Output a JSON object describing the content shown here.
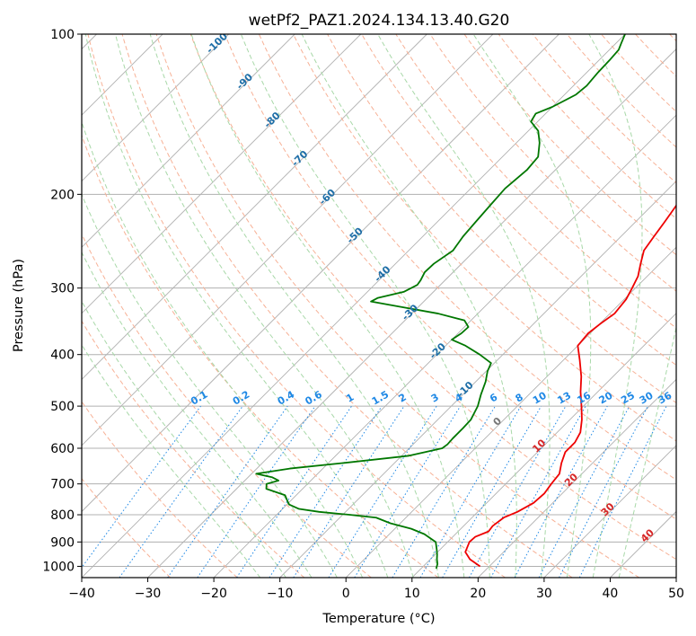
{
  "chart_data": {
    "type": "line",
    "subtype": "skew-T log-P sounding diagram",
    "title": "wetPf2_PAZ1.2024.134.13.40.G20",
    "xlabel": "Temperature (°C)",
    "ylabel": "Pressure (hPa)",
    "xlim": [
      -40,
      50
    ],
    "ylim": [
      1050,
      100
    ],
    "y_scale": "log",
    "grid": true,
    "x_ticks": [
      "−40",
      "−30",
      "−20",
      "−10",
      "0",
      "10",
      "20",
      "30",
      "40",
      "50"
    ],
    "y_ticks": [
      "100",
      "200",
      "300",
      "400",
      "500",
      "600",
      "700",
      "800",
      "900",
      "1000"
    ],
    "isotherm_labels": [
      "-100",
      "-90",
      "-80",
      "-70",
      "-60",
      "-50",
      "-40",
      "-30",
      "-20",
      "-10",
      "0",
      "10",
      "20",
      "30",
      "40"
    ],
    "isotherm_label_values": [
      -100,
      -90,
      -80,
      -70,
      -60,
      -50,
      -40,
      -30,
      -20,
      -10,
      0,
      10,
      20,
      30,
      40
    ],
    "mixing_ratio_labels": [
      "0.1",
      "0.2",
      "0.4",
      "0.6",
      "1",
      "1.5",
      "2",
      "3",
      "4",
      "6",
      "8",
      "10",
      "13",
      "16",
      "20",
      "25",
      "30",
      "36"
    ],
    "series": [
      {
        "color": "#ee0000",
        "points": [
          [
            1000,
            18.6
          ],
          [
            970,
            16.0
          ],
          [
            940,
            14.2
          ],
          [
            900,
            13.3
          ],
          [
            880,
            13.4
          ],
          [
            860,
            14.6
          ],
          [
            840,
            14.4
          ],
          [
            810,
            14.8
          ],
          [
            790,
            16.0
          ],
          [
            760,
            17.1
          ],
          [
            730,
            17.3
          ],
          [
            700,
            16.9
          ],
          [
            670,
            16.6
          ],
          [
            640,
            15.3
          ],
          [
            610,
            14.2
          ],
          [
            585,
            14.2
          ],
          [
            560,
            13.5
          ],
          [
            530,
            11.8
          ],
          [
            500,
            9.7
          ],
          [
            470,
            7.4
          ],
          [
            440,
            5.2
          ],
          [
            410,
            2.5
          ],
          [
            385,
            0.0
          ],
          [
            365,
            -0.3
          ],
          [
            350,
            0.1
          ],
          [
            335,
            0.7
          ],
          [
            315,
            0.3
          ],
          [
            300,
            -0.5
          ],
          [
            285,
            -1.4
          ],
          [
            270,
            -2.9
          ],
          [
            255,
            -4.4
          ],
          [
            240,
            -5.0
          ],
          [
            225,
            -5.6
          ],
          [
            210,
            -6.3
          ],
          [
            195,
            -7.7
          ],
          [
            180,
            -9.7
          ],
          [
            165,
            -11.6
          ],
          [
            152,
            -13.4
          ],
          [
            142,
            -14.9
          ],
          [
            135,
            -16.3
          ],
          [
            128,
            -18.1
          ],
          [
            122,
            -19.6
          ],
          [
            117,
            -20.5
          ],
          [
            110,
            -21.5
          ],
          [
            104,
            -22.5
          ],
          [
            100,
            -23.1
          ]
        ]
      },
      {
        "color": "#007700",
        "points": [
          [
            1010,
            12.3
          ],
          [
            990,
            11.8
          ],
          [
            970,
            11.0
          ],
          [
            950,
            10.3
          ],
          [
            930,
            9.5
          ],
          [
            900,
            8.2
          ],
          [
            870,
            5.3
          ],
          [
            850,
            2.5
          ],
          [
            830,
            -1.5
          ],
          [
            810,
            -4.5
          ],
          [
            800,
            -9.0
          ],
          [
            790,
            -14.0
          ],
          [
            780,
            -17.5
          ],
          [
            765,
            -19.7
          ],
          [
            750,
            -20.7
          ],
          [
            735,
            -21.7
          ],
          [
            715,
            -25.5
          ],
          [
            700,
            -26.2
          ],
          [
            690,
            -24.9
          ],
          [
            680,
            -26.4
          ],
          [
            670,
            -29.3
          ],
          [
            655,
            -25.0
          ],
          [
            640,
            -18.0
          ],
          [
            620,
            -9.0
          ],
          [
            600,
            -5.0
          ],
          [
            590,
            -4.8
          ],
          [
            575,
            -4.9
          ],
          [
            550,
            -4.9
          ],
          [
            530,
            -5.0
          ],
          [
            500,
            -6.0
          ],
          [
            475,
            -7.3
          ],
          [
            450,
            -8.5
          ],
          [
            430,
            -9.8
          ],
          [
            415,
            -10.5
          ],
          [
            400,
            -13.5
          ],
          [
            385,
            -17.0
          ],
          [
            375,
            -20.0
          ],
          [
            365,
            -19.5
          ],
          [
            355,
            -19.4
          ],
          [
            345,
            -21.0
          ],
          [
            335,
            -26.0
          ],
          [
            325,
            -33.0
          ],
          [
            318,
            -38.0
          ],
          [
            313,
            -37.5
          ],
          [
            305,
            -34.5
          ],
          [
            296,
            -33.5
          ],
          [
            290,
            -33.7
          ],
          [
            280,
            -34.3
          ],
          [
            270,
            -34.2
          ],
          [
            255,
            -33.3
          ],
          [
            240,
            -33.9
          ],
          [
            225,
            -34.2
          ],
          [
            210,
            -34.5
          ],
          [
            195,
            -34.8
          ],
          [
            180,
            -34.3
          ],
          [
            170,
            -34.6
          ],
          [
            160,
            -36.5
          ],
          [
            152,
            -38.5
          ],
          [
            146,
            -41.0
          ],
          [
            141,
            -41.5
          ],
          [
            137,
            -40.0
          ],
          [
            130,
            -38.3
          ],
          [
            125,
            -38.0
          ],
          [
            118,
            -38.3
          ],
          [
            112,
            -38.4
          ],
          [
            107,
            -38.6
          ],
          [
            104,
            -39.2
          ],
          [
            100,
            -40.0
          ]
        ]
      }
    ]
  }
}
